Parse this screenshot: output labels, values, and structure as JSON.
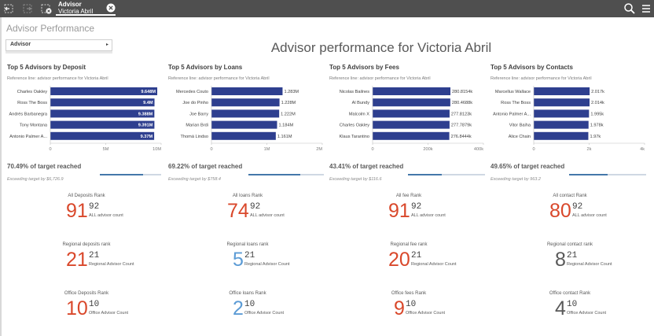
{
  "toolbar": {
    "selection_field": "Advisor",
    "selection_value": "Victoria Abril",
    "icons": [
      "selections-back-icon",
      "selections-forward-icon",
      "clear-all-selections-icon",
      "clear-selection-icon",
      "search-icon",
      "menu-icon"
    ],
    "background": "#4f4f4f"
  },
  "sheet": {
    "title": "Advisor Performance",
    "filter_label": "Advisor",
    "main_title": "Advisor performance for Victoria Abril"
  },
  "colors": {
    "bar": "#2e3f8f",
    "rank_red": "#d9482b",
    "rank_blue": "#5b9bd5",
    "rank_gray": "#595959",
    "target_fill": "#4477aa"
  },
  "panels": [
    {
      "title": "Top 5 Advisors by Deposit",
      "reference": "Reference line: advisor performance for Victoria Abril",
      "target_pct": "70.49% of target reached",
      "target_fraction": 0.7049,
      "target_note": "Exceeding target by $6,726.9",
      "chart_data": {
        "type": "bar",
        "orientation": "horizontal",
        "categories": [
          "Charles Oakley",
          "Ross The Boss",
          "Andrés Barbanegra",
          "Tony Montana",
          "Antonio Palmer A..."
        ],
        "values": [
          9.648,
          9.4,
          9.388,
          9.391,
          9.37
        ],
        "data_labels": [
          "9.648M",
          "9.4M",
          "9.388M",
          "9.391M",
          "9.37M"
        ],
        "xticks": [
          "0",
          "5M",
          "10M"
        ],
        "xlim": [
          0,
          10
        ],
        "label_inside": true
      }
    },
    {
      "title": "Top 5 Advisors by Loans",
      "reference": "Reference line: advisor performance for Victoria Abril",
      "target_pct": "69.22% of target reached",
      "target_fraction": 0.6922,
      "target_note": "Exceeding target by $758.4",
      "chart_data": {
        "type": "bar",
        "orientation": "horizontal",
        "categories": [
          "Mercedes Couto",
          "Joe do Pinho",
          "Joe Barry",
          "Marian Brdi",
          "Thomá Lindso"
        ],
        "values": [
          1.283,
          1.228,
          1.222,
          1.184,
          1.161
        ],
        "data_labels": [
          "1.283M",
          "1.228M",
          "1.222M",
          "1.184M",
          "1.161M"
        ],
        "xticks": [
          "0",
          "1M",
          "2M"
        ],
        "xlim": [
          0,
          2
        ],
        "label_inside": false
      }
    },
    {
      "title": "Top 5 Advisors by Fees",
      "reference": "Reference line: advisor performance for Victoria Abril",
      "target_pct": "43.41% of target reached",
      "target_fraction": 0.4341,
      "target_note": "Exceeding target by $116.6",
      "chart_data": {
        "type": "bar",
        "orientation": "horizontal",
        "categories": [
          "Nicolas Bailnes",
          "Al Bundy",
          "Malcolm X",
          "Charles Oakley",
          "Klaus Tarantino"
        ],
        "values": [
          280.8154,
          280.4688,
          277.8123,
          277.7879,
          276.8444
        ],
        "data_labels": [
          "280.8154k",
          "280.4688k",
          "277.8123k",
          "277.7879k",
          "276.8444k"
        ],
        "xticks": [
          "0",
          "200k",
          "400k"
        ],
        "xlim": [
          0,
          400
        ],
        "label_inside": false
      }
    },
    {
      "title": "Top 5 Advisors by Contacts",
      "reference": "Reference line: advisor performance for Victoria Abril",
      "target_pct": "49.65% of target reached",
      "target_fraction": 0.4965,
      "target_note": "Exceeding target by 963.2",
      "chart_data": {
        "type": "bar",
        "orientation": "horizontal",
        "categories": [
          "Marcellus Wallace",
          "Ross The Boss",
          "Antonio Palmer A...",
          "Vitor Baiha",
          "Alice Chain"
        ],
        "values": [
          2.017,
          2.014,
          1.995,
          1.978,
          1.97
        ],
        "data_labels": [
          "2.017k",
          "2.014k",
          "1.995k",
          "1.978k",
          "1.97k"
        ],
        "xticks": [
          "0",
          "2k",
          "4k"
        ],
        "xlim": [
          0,
          4
        ],
        "label_inside": false
      }
    }
  ],
  "ranks": [
    [
      {
        "label": "All Deposits Rank",
        "rank": "91",
        "total": "92",
        "count_label": "ALL advisor count",
        "color": "#d9482b"
      },
      {
        "label": "All loans Rank",
        "rank": "74",
        "total": "92",
        "count_label": "ALL advisor count",
        "color": "#d9482b"
      },
      {
        "label": "All fee Rank",
        "rank": "91",
        "total": "92",
        "count_label": "ALL advisor count",
        "color": "#d9482b"
      },
      {
        "label": "All contact Rank",
        "rank": "80",
        "total": "92",
        "count_label": "ALL advisor count",
        "color": "#d9482b"
      }
    ],
    [
      {
        "label": "Regional deposits rank",
        "rank": "21",
        "total": "21",
        "count_label": "Regional Advisor Count",
        "color": "#d9482b"
      },
      {
        "label": "Regional loans rank",
        "rank": "5",
        "total": "21",
        "count_label": "Regional Advisor Count",
        "color": "#5b9bd5"
      },
      {
        "label": "Regional fee rank",
        "rank": "20",
        "total": "21",
        "count_label": "Regional Advisor Count",
        "color": "#d9482b"
      },
      {
        "label": "Regional contact rank",
        "rank": "8",
        "total": "21",
        "count_label": "Regional Advisor Count",
        "color": "#595959"
      }
    ],
    [
      {
        "label": "Office Deposits Rank",
        "rank": "10",
        "total": "10",
        "count_label": "Office Advisor Count",
        "color": "#d9482b"
      },
      {
        "label": "Office loans Rank",
        "rank": "2",
        "total": "10",
        "count_label": "Office Advisor Count",
        "color": "#5b9bd5"
      },
      {
        "label": "Office fees Rank",
        "rank": "9",
        "total": "10",
        "count_label": "Office Advisor Count",
        "color": "#d9482b"
      },
      {
        "label": "Office contact Rank",
        "rank": "4",
        "total": "10",
        "count_label": "Office Advisor Count",
        "color": "#595959"
      }
    ]
  ]
}
